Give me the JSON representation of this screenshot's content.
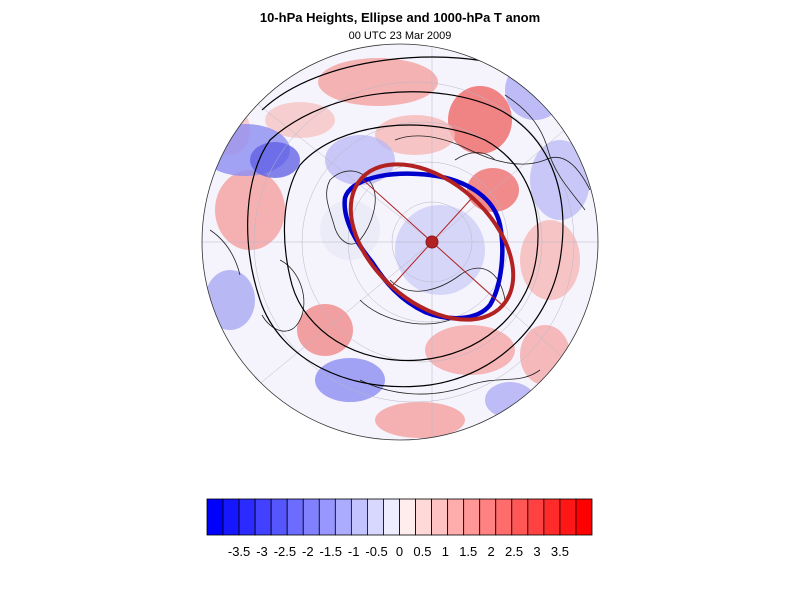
{
  "figure": {
    "title": "10-hPa Heights, Ellipse and 1000-hPa T anom",
    "subtitle": "00 UTC 23 Mar 2009"
  },
  "colorbar": {
    "labels": [
      "-3.5",
      "-3",
      "-2.5",
      "-2",
      "-1.5",
      "-1",
      "-0.5",
      "0",
      "0.5",
      "1",
      "1.5",
      "2",
      "2.5",
      "3",
      "3.5"
    ],
    "levels": 24,
    "low_color": "#0000ff",
    "mid_color": "#ffffff",
    "high_color": "#ff0000"
  },
  "legend_colors": {
    "ellipse_fit": "#b22222",
    "vortex_edge": "#0000cd",
    "height_contours": "#000000"
  }
}
